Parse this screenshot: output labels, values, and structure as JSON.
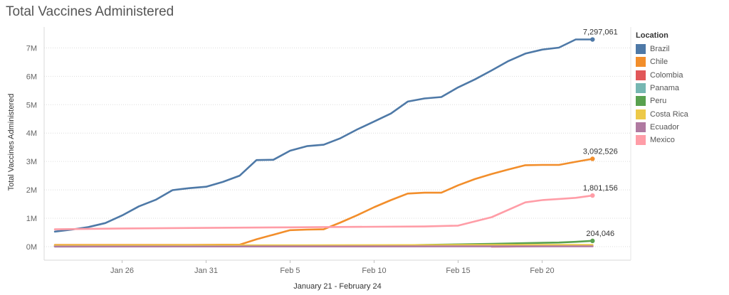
{
  "title": "Total Vaccines Administered",
  "chart_data": {
    "type": "line",
    "title": "Total Vaccines Administered",
    "xlabel": "January 21 - February 24",
    "ylabel": "Total Vaccines Administered",
    "ylim": [
      0,
      7700000
    ],
    "yticks": [
      0,
      1000000,
      2000000,
      3000000,
      4000000,
      5000000,
      6000000,
      7000000
    ],
    "ytick_labels": [
      "0M",
      "1M",
      "2M",
      "3M",
      "4M",
      "5M",
      "6M",
      "7M"
    ],
    "xticks": [
      "2021-01-26",
      "2021-01-31",
      "2021-02-05",
      "2021-02-10",
      "2021-02-15",
      "2021-02-20"
    ],
    "xtick_labels": [
      "Jan 26",
      "Jan 31",
      "Feb 5",
      "Feb 10",
      "Feb 15",
      "Feb 20"
    ],
    "xlim": [
      "2021-01-21",
      "2021-02-24"
    ],
    "grid": "horizontal dotted",
    "legend_title": "Location",
    "legend_position": "right",
    "series": [
      {
        "name": "Brazil",
        "color": "#4e79a7",
        "x": [
          "2021-01-22",
          "2021-01-23",
          "2021-01-24",
          "2021-01-25",
          "2021-01-26",
          "2021-01-27",
          "2021-01-28",
          "2021-01-29",
          "2021-01-30",
          "2021-01-31",
          "2021-02-01",
          "2021-02-02",
          "2021-02-03",
          "2021-02-04",
          "2021-02-05",
          "2021-02-06",
          "2021-02-07",
          "2021-02-08",
          "2021-02-09",
          "2021-02-10",
          "2021-02-11",
          "2021-02-12",
          "2021-02-13",
          "2021-02-14",
          "2021-02-15",
          "2021-02-16",
          "2021-02-17",
          "2021-02-18",
          "2021-02-19",
          "2021-02-20",
          "2021-02-21",
          "2021-02-22",
          "2021-02-23"
        ],
        "y": [
          530000,
          600000,
          690000,
          830000,
          1100000,
          1420000,
          1650000,
          1990000,
          2060000,
          2110000,
          2280000,
          2500000,
          3050000,
          3060000,
          3380000,
          3540000,
          3590000,
          3820000,
          4130000,
          4410000,
          4690000,
          5110000,
          5220000,
          5270000,
          5610000,
          5890000,
          6210000,
          6540000,
          6800000,
          6940000,
          7010000,
          7297061,
          7297061
        ],
        "end_label": "7,297,061"
      },
      {
        "name": "Chile",
        "color": "#f28e2b",
        "x": [
          "2021-01-22",
          "2021-01-26",
          "2021-01-30",
          "2021-02-02",
          "2021-02-03",
          "2021-02-04",
          "2021-02-05",
          "2021-02-06",
          "2021-02-07",
          "2021-02-08",
          "2021-02-09",
          "2021-02-10",
          "2021-02-11",
          "2021-02-12",
          "2021-02-13",
          "2021-02-14",
          "2021-02-15",
          "2021-02-16",
          "2021-02-17",
          "2021-02-18",
          "2021-02-19",
          "2021-02-20",
          "2021-02-21",
          "2021-02-22",
          "2021-02-23"
        ],
        "y": [
          60000,
          60000,
          60000,
          70000,
          260000,
          420000,
          580000,
          600000,
          610000,
          850000,
          1110000,
          1390000,
          1640000,
          1870000,
          1900000,
          1900000,
          2160000,
          2380000,
          2560000,
          2720000,
          2870000,
          2880000,
          2880000,
          2990000,
          3092526
        ],
        "end_label": "3,092,526"
      },
      {
        "name": "Colombia",
        "color": "#e15759",
        "x": [
          "2021-02-17",
          "2021-02-18",
          "2021-02-19",
          "2021-02-20",
          "2021-02-21",
          "2021-02-22",
          "2021-02-23"
        ],
        "y": [
          0,
          5000,
          10000,
          20000,
          25000,
          30000,
          35000
        ],
        "end_label": ""
      },
      {
        "name": "Panama",
        "color": "#76b7b2",
        "x": [
          "2021-01-22",
          "2021-01-30",
          "2021-02-06",
          "2021-02-10",
          "2021-02-14",
          "2021-02-18",
          "2021-02-22"
        ],
        "y": [
          5000,
          10000,
          15000,
          20000,
          25000,
          30000,
          35000
        ],
        "end_label": ""
      },
      {
        "name": "Peru",
        "color": "#59a14f",
        "x": [
          "2021-01-22",
          "2021-01-30",
          "2021-02-06",
          "2021-02-10",
          "2021-02-13",
          "2021-02-15",
          "2021-02-17",
          "2021-02-19",
          "2021-02-21",
          "2021-02-22",
          "2021-02-23"
        ],
        "y": [
          30000,
          30000,
          30000,
          30000,
          60000,
          80000,
          100000,
          125000,
          145000,
          170000,
          204046
        ],
        "end_label": "204,046"
      },
      {
        "name": "Costa Rica",
        "color": "#edc948",
        "x": [
          "2021-01-22",
          "2021-01-30",
          "2021-02-06",
          "2021-02-12",
          "2021-02-18",
          "2021-02-23"
        ],
        "y": [
          40000,
          45000,
          50000,
          55000,
          60000,
          62000
        ],
        "end_label": ""
      },
      {
        "name": "Ecuador",
        "color": "#b07aa1",
        "x": [
          "2021-01-22",
          "2021-02-05",
          "2021-02-15",
          "2021-02-23"
        ],
        "y": [
          6000,
          8000,
          10000,
          12000
        ],
        "end_label": ""
      },
      {
        "name": "Mexico",
        "color": "#ff9da7",
        "x": [
          "2021-01-22",
          "2021-01-26",
          "2021-01-31",
          "2021-02-05",
          "2021-02-10",
          "2021-02-13",
          "2021-02-15",
          "2021-02-17",
          "2021-02-19",
          "2021-02-20",
          "2021-02-21",
          "2021-02-22",
          "2021-02-23"
        ],
        "y": [
          610000,
          640000,
          660000,
          680000,
          700000,
          710000,
          740000,
          1040000,
          1560000,
          1640000,
          1680000,
          1720000,
          1801156
        ],
        "end_label": "1,801,156"
      }
    ]
  }
}
